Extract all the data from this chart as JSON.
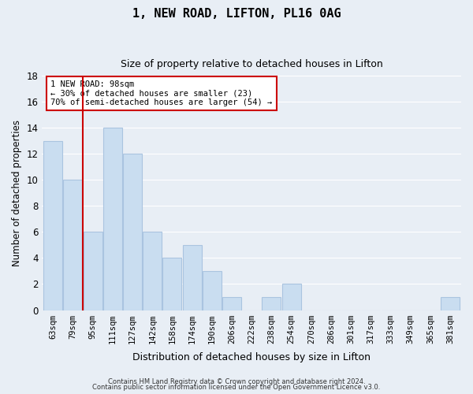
{
  "title": "1, NEW ROAD, LIFTON, PL16 0AG",
  "subtitle": "Size of property relative to detached houses in Lifton",
  "xlabel": "Distribution of detached houses by size in Lifton",
  "ylabel": "Number of detached properties",
  "bin_labels": [
    "63sqm",
    "79sqm",
    "95sqm",
    "111sqm",
    "127sqm",
    "142sqm",
    "158sqm",
    "174sqm",
    "190sqm",
    "206sqm",
    "222sqm",
    "238sqm",
    "254sqm",
    "270sqm",
    "286sqm",
    "301sqm",
    "317sqm",
    "333sqm",
    "349sqm",
    "365sqm",
    "381sqm"
  ],
  "bar_heights": [
    13,
    10,
    6,
    14,
    12,
    6,
    4,
    5,
    3,
    1,
    0,
    1,
    2,
    0,
    0,
    0,
    0,
    0,
    0,
    0,
    1
  ],
  "bar_color": "#c9ddf0",
  "bar_edge_color": "#aac4e0",
  "grid_color": "#ffffff",
  "bg_color": "#e8eef5",
  "marker_line_index": 2,
  "marker_line_color": "#cc0000",
  "annotation_title": "1 NEW ROAD: 98sqm",
  "annotation_line1": "← 30% of detached houses are smaller (23)",
  "annotation_line2": "70% of semi-detached houses are larger (54) →",
  "annotation_box_color": "#ffffff",
  "annotation_box_edge": "#cc0000",
  "ylim": [
    0,
    18
  ],
  "yticks": [
    0,
    2,
    4,
    6,
    8,
    10,
    12,
    14,
    16,
    18
  ],
  "footer1": "Contains HM Land Registry data © Crown copyright and database right 2024.",
  "footer2": "Contains public sector information licensed under the Open Government Licence v3.0."
}
